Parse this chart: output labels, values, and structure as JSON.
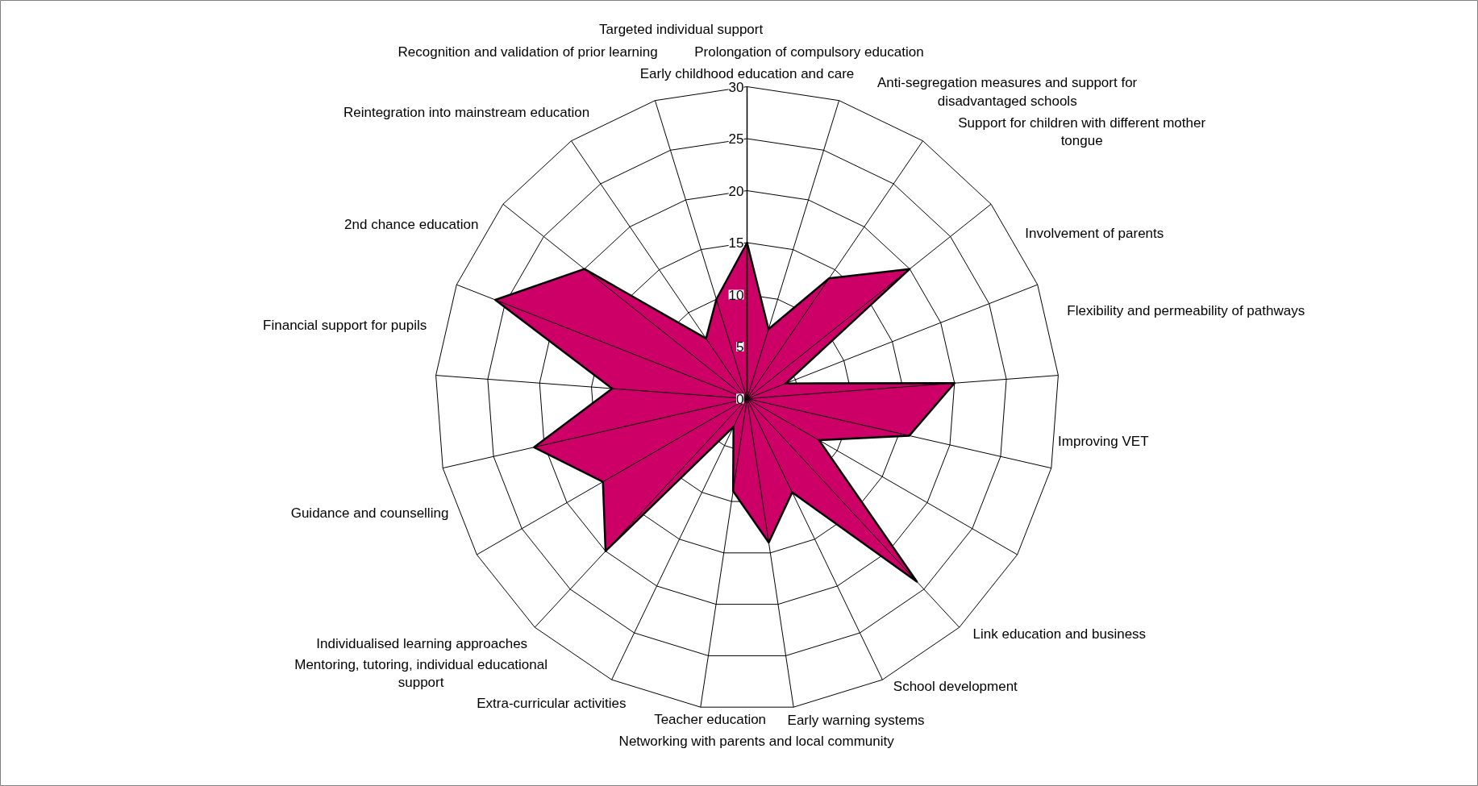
{
  "chart_data": {
    "type": "radar",
    "categories": [
      "Early childhood education and care",
      "Prolongation of compulsory education",
      "Anti-segregation measures and support for disadvantaged schools",
      "Support for children with different mother tongue",
      "Involvement of parents",
      "Flexibility and permeability of pathways",
      "Improving VET",
      "Link education and business",
      "School development",
      "Early warning systems",
      "Networking with parents and local community",
      "Teacher education",
      "Extra-curricular activities",
      "Mentoring, tutoring, individual educational support",
      "Individualised learning approaches",
      "Guidance and counselling",
      "Financial support for pupils",
      "2nd chance education",
      "Reintegration into mainstream education",
      "Recognition and validation of prior learning",
      "Targeted individual support"
    ],
    "series": [
      {
        "color": "#cc0066",
        "values": [
          15,
          7,
          14,
          20,
          4,
          20,
          16,
          8,
          24,
          10,
          14,
          9,
          3,
          20,
          16,
          21,
          13,
          26,
          20,
          7,
          10
        ]
      }
    ],
    "ylim": [
      0,
      30
    ],
    "yticks": [
      0,
      5,
      10,
      15,
      20,
      25,
      30
    ],
    "grid": true
  }
}
